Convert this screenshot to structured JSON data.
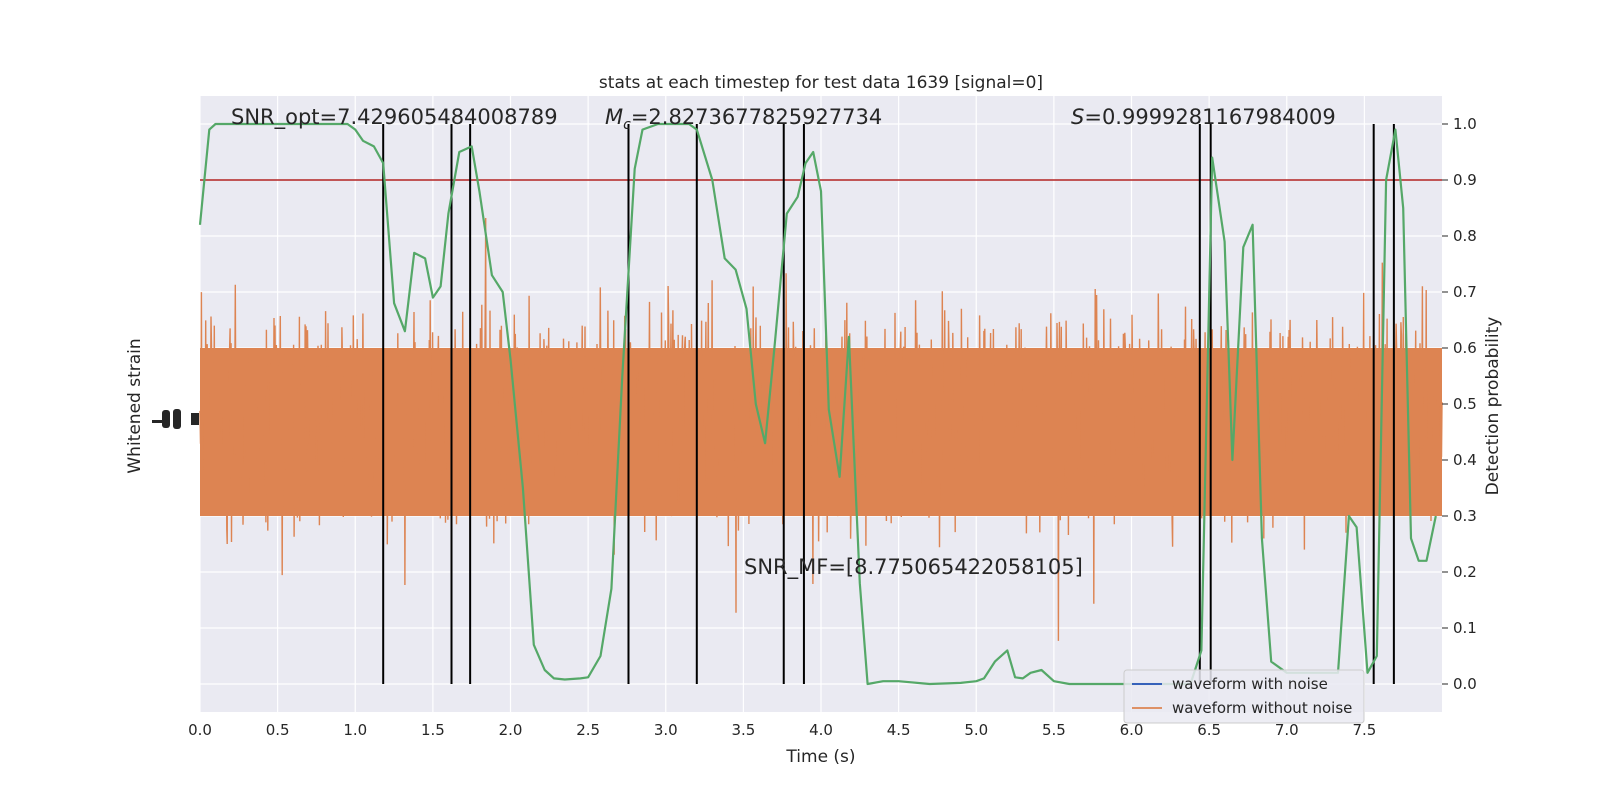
{
  "chart_data": {
    "type": "line",
    "title": "stats at each timestep for test data 1639 [signal=0]",
    "xlabel": "Time (s)",
    "ylabel_left": "Whitened strain",
    "ylabel_right": "Detection probability",
    "xlim": [
      0.0,
      8.0
    ],
    "ylim_right": [
      -0.05,
      1.05
    ],
    "xticks": [
      "0.0",
      "0.5",
      "1.0",
      "1.5",
      "2.0",
      "2.5",
      "3.0",
      "3.5",
      "4.0",
      "4.5",
      "5.0",
      "5.5",
      "6.0",
      "6.5",
      "7.0",
      "7.5"
    ],
    "yticks_right": [
      "0.0",
      "0.1",
      "0.2",
      "0.3",
      "0.4",
      "0.5",
      "0.6",
      "0.7",
      "0.8",
      "0.9",
      "1.0"
    ],
    "grid": true,
    "threshold": 0.9,
    "annotations": {
      "snr_opt": "SNR_opt=7.429605484008789",
      "mc": "=2.8273677825927734",
      "s": "=0.9999281167984009",
      "snr_mf": "SNR_MF=[8.775065422058105]"
    },
    "vertical_lines": [
      1.18,
      1.62,
      1.74,
      2.76,
      3.2,
      3.76,
      3.89,
      6.44,
      6.51,
      7.56,
      7.69
    ],
    "probability": {
      "name": "detection probability",
      "x": [
        0.0,
        0.06,
        0.1,
        0.2,
        0.4,
        0.6,
        0.8,
        0.95,
        1.0,
        1.05,
        1.12,
        1.18,
        1.25,
        1.32,
        1.38,
        1.45,
        1.5,
        1.55,
        1.6,
        1.67,
        1.75,
        1.8,
        1.88,
        1.95,
        2.0,
        2.08,
        2.15,
        2.22,
        2.28,
        2.35,
        2.45,
        2.5,
        2.58,
        2.65,
        2.72,
        2.8,
        2.85,
        2.95,
        3.05,
        3.15,
        3.2,
        3.3,
        3.38,
        3.45,
        3.52,
        3.58,
        3.64,
        3.7,
        3.78,
        3.85,
        3.9,
        3.95,
        4.0,
        4.05,
        4.12,
        4.18,
        4.25,
        4.3,
        4.4,
        4.5,
        4.7,
        4.9,
        5.0,
        5.05,
        5.12,
        5.2,
        5.25,
        5.3,
        5.35,
        5.42,
        5.5,
        5.6,
        5.8,
        6.0,
        6.2,
        6.38,
        6.45,
        6.52,
        6.6,
        6.65,
        6.72,
        6.78,
        6.84,
        6.9,
        7.0,
        7.1,
        7.25,
        7.33,
        7.4,
        7.45,
        7.52,
        7.58,
        7.64,
        7.7,
        7.75,
        7.8,
        7.85,
        7.9,
        7.96
      ],
      "y": [
        0.82,
        0.99,
        1.0,
        1.0,
        1.0,
        1.0,
        1.0,
        1.0,
        0.99,
        0.97,
        0.96,
        0.93,
        0.68,
        0.63,
        0.77,
        0.76,
        0.69,
        0.71,
        0.84,
        0.95,
        0.96,
        0.88,
        0.73,
        0.7,
        0.58,
        0.35,
        0.07,
        0.025,
        0.01,
        0.008,
        0.01,
        0.012,
        0.05,
        0.17,
        0.55,
        0.92,
        0.99,
        1.0,
        1.0,
        1.0,
        0.99,
        0.9,
        0.76,
        0.74,
        0.67,
        0.5,
        0.43,
        0.6,
        0.84,
        0.87,
        0.93,
        0.95,
        0.88,
        0.49,
        0.37,
        0.62,
        0.18,
        0.0,
        0.005,
        0.005,
        0.0,
        0.002,
        0.005,
        0.01,
        0.04,
        0.06,
        0.012,
        0.01,
        0.02,
        0.025,
        0.005,
        0.0,
        0.0,
        0.0,
        0.0,
        0.0,
        0.06,
        0.94,
        0.79,
        0.4,
        0.78,
        0.82,
        0.26,
        0.04,
        0.02,
        0.02,
        0.02,
        0.02,
        0.3,
        0.28,
        0.02,
        0.05,
        0.9,
        0.99,
        0.85,
        0.26,
        0.22,
        0.22,
        0.3
      ]
    },
    "series": [
      {
        "name": "waveform with noise"
      },
      {
        "name": "waveform without noise"
      }
    ],
    "colors": {
      "background": "#eaeaf2",
      "grid": "#ffffff",
      "noise": "#1f4fb5",
      "strain": "#dd8452",
      "probability": "#55a868",
      "threshold": "#b22222",
      "vline": "#000000"
    },
    "legend_position": "lower-right"
  }
}
